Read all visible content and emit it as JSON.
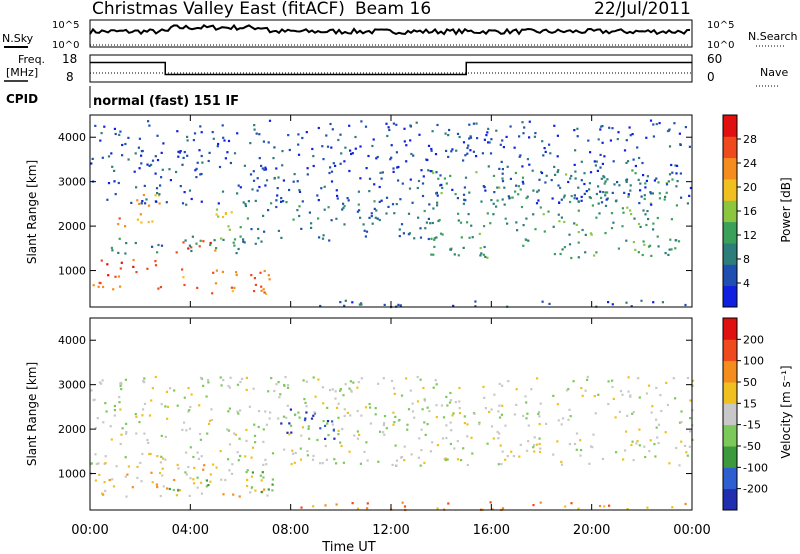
{
  "header": {
    "station": "Christmas Valley East (fitACF)",
    "beam": "Beam 16",
    "date": "22/Jul/2011"
  },
  "status_panels": {
    "nsky_label": "N.Sky",
    "nsky_ticks": [
      "10^5",
      "10^0"
    ],
    "nsearch_label": "N.Search",
    "nsearch_ticks": [
      "10^5",
      "10^0"
    ],
    "freq_label": [
      "Freq.",
      "[MHz]"
    ],
    "freq_ticks": [
      "18",
      "8"
    ],
    "nave_label": "Nave",
    "nave_ticks": [
      "60",
      "0"
    ],
    "cpid_label": "CPID",
    "cpid_text": "normal (fast) 151 IF",
    "freq_profile": {
      "high_until": 3.0,
      "low_until": 15.0,
      "high_level": 0.72,
      "low_level": 0.28
    }
  },
  "chart_data": [
    {
      "type": "heatmap",
      "parameter": "power",
      "ylabel": "Slant Range [km]",
      "ylim": [
        180,
        4500
      ],
      "yticks": [
        "1000",
        "2000",
        "3000",
        "4000"
      ],
      "xlim": [
        0,
        24
      ],
      "colorbar_label": "Power [dB]",
      "colorbar_ticks": [
        "28",
        "24",
        "20",
        "16",
        "12",
        "8",
        "4"
      ],
      "colors": [
        "#1020e0",
        "#1f4fb0",
        "#2e7d7a",
        "#3aa05a",
        "#8cc63f",
        "#f0c020",
        "#f58c1e",
        "#ef4a1e",
        "#e01010"
      ],
      "features": [
        {
          "t": [
            0.0,
            2.8
          ],
          "r": [
            600,
            1300
          ],
          "v": 0.82
        },
        {
          "t": [
            3.0,
            5.0
          ],
          "r": [
            1350,
            1700
          ],
          "v": 0.78
        },
        {
          "t": [
            3.2,
            7.3
          ],
          "r": [
            500,
            1100
          ],
          "v": 0.75
        },
        {
          "t": [
            1.0,
            2.8
          ],
          "r": [
            2000,
            2750
          ],
          "v": 0.7
        },
        {
          "t": [
            5.0,
            6.5
          ],
          "r": [
            1700,
            2400
          ],
          "v": 0.55
        },
        {
          "t": [
            0.0,
            7.0
          ],
          "r": [
            1400,
            1800
          ],
          "v": 0.3
        },
        {
          "t": [
            6.0,
            13.5
          ],
          "r": [
            1700,
            2600
          ],
          "v": 0.25
        },
        {
          "t": [
            13.5,
            23.5
          ],
          "r": [
            1300,
            3300
          ],
          "v": 0.35
        },
        {
          "t": [
            7.3,
            24.0
          ],
          "r": [
            200,
            350
          ],
          "v": 0.2
        },
        {
          "t": [
            0.0,
            24.0
          ],
          "r": [
            2500,
            4400
          ],
          "v": 0.15
        }
      ]
    },
    {
      "type": "heatmap",
      "parameter": "velocity",
      "ylabel": "Slant Range [km]",
      "ylim": [
        180,
        4500
      ],
      "yticks": [
        "1000",
        "2000",
        "3000",
        "4000"
      ],
      "xlim": [
        0,
        24
      ],
      "xticks": [
        "00:00",
        "04:00",
        "08:00",
        "12:00",
        "16:00",
        "20:00",
        "00:00"
      ],
      "xlabel": "Time UT",
      "colorbar_label": "Velocity [m s⁻¹]",
      "colorbar_ticks": [
        "200",
        "100",
        "50",
        "15",
        "-15",
        "-50",
        "-100",
        "-200"
      ],
      "colors": [
        "#1f2fb0",
        "#2e5fd0",
        "#3c9a3c",
        "#7dc85a",
        "#c8c8c8",
        "#f0c020",
        "#f58c1e",
        "#ef4a1e",
        "#e01010"
      ],
      "features": [
        {
          "t": [
            0.0,
            7.3
          ],
          "r": [
            500,
            1300
          ],
          "v": 0.6
        },
        {
          "t": [
            3.0,
            7.3
          ],
          "r": [
            600,
            1100
          ],
          "v": 0.35
        },
        {
          "t": [
            7.5,
            9.8
          ],
          "r": [
            1900,
            2500
          ],
          "v": 0.1
        },
        {
          "t": [
            9.0,
            9.8
          ],
          "r": [
            1800,
            2200
          ],
          "v": 0.1
        },
        {
          "t": [
            0.0,
            24.0
          ],
          "r": [
            1200,
            3200
          ],
          "v": 0.48
        },
        {
          "t": [
            7.3,
            24.0
          ],
          "r": [
            200,
            380
          ],
          "v": 0.72
        }
      ]
    }
  ]
}
